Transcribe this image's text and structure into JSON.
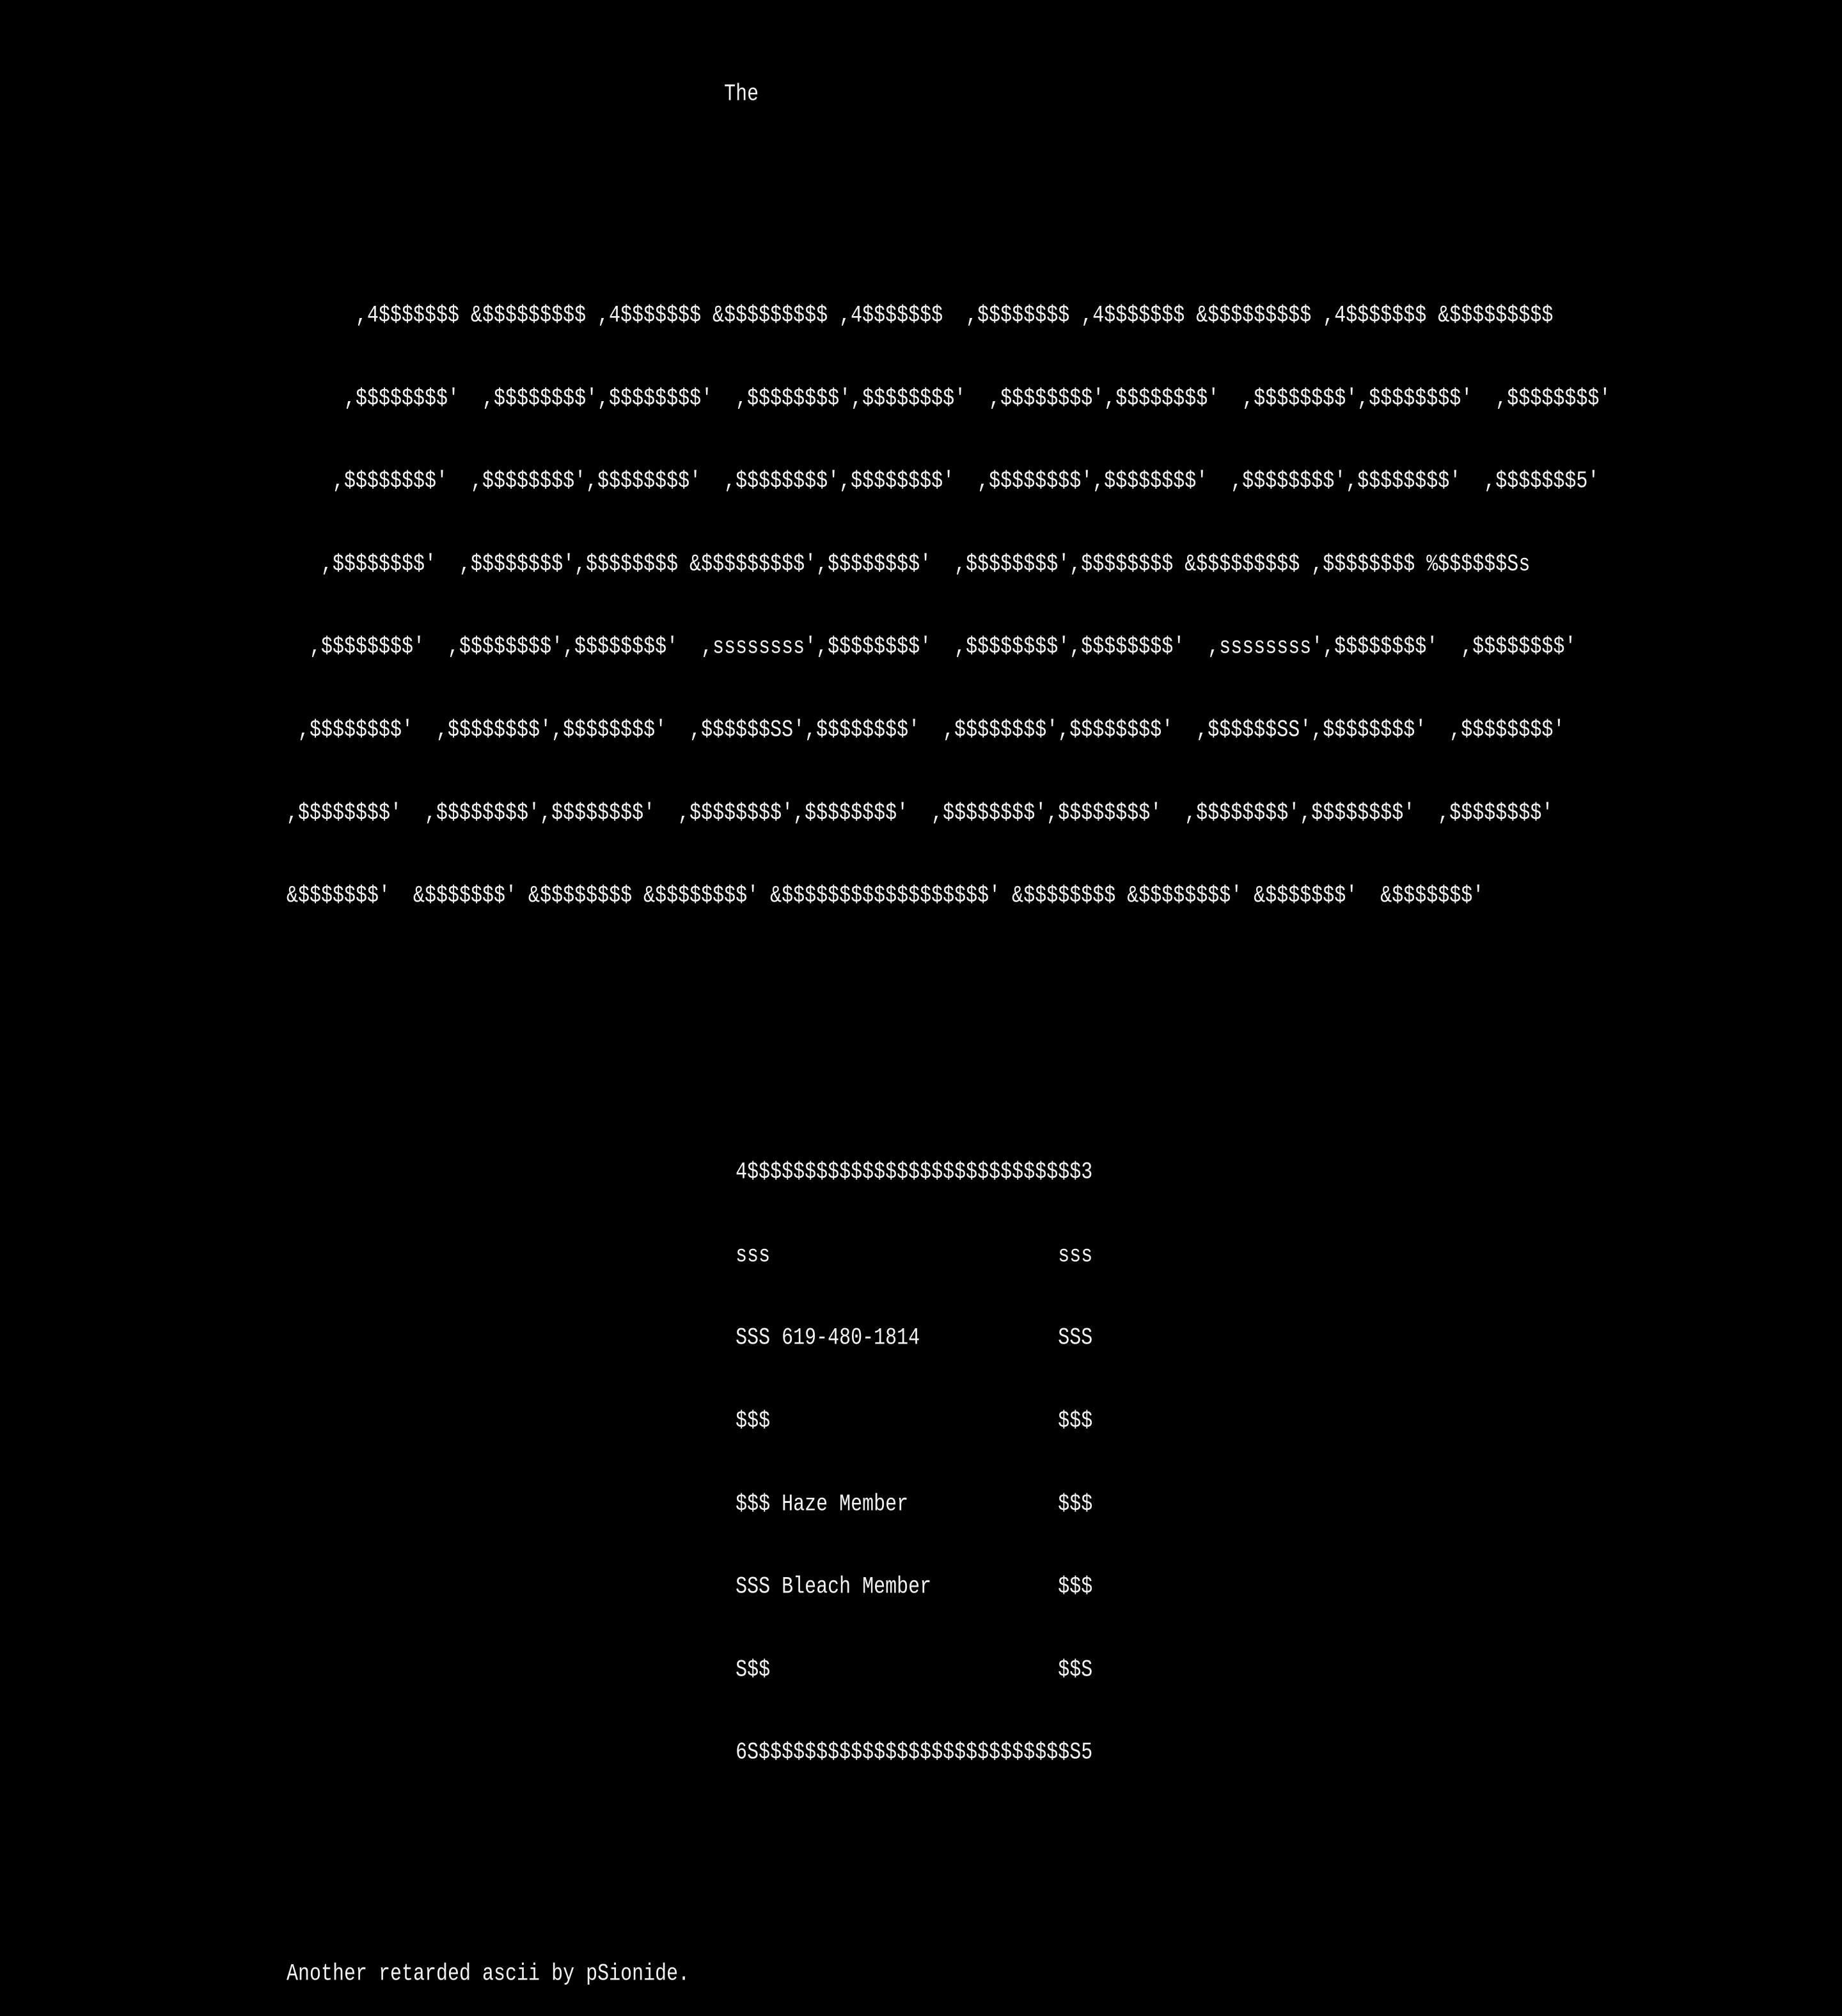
{
  "heading": "                                      The",
  "art_lines": [
    "      ,4$$$$$$$ &$$$$$$$$$ ,4$$$$$$$ &$$$$$$$$$ ,4$$$$$$$  ,$$$$$$$$ ,4$$$$$$$ &$$$$$$$$$ ,4$$$$$$$ &$$$$$$$$$",
    "     ,$$$$$$$$'  ,$$$$$$$$',$$$$$$$$'  ,$$$$$$$$',$$$$$$$$'  ,$$$$$$$$',$$$$$$$$'  ,$$$$$$$$',$$$$$$$$'  ,$$$$$$$$'",
    "    ,$$$$$$$$'  ,$$$$$$$$',$$$$$$$$'  ,$$$$$$$$',$$$$$$$$'  ,$$$$$$$$',$$$$$$$$'  ,$$$$$$$$',$$$$$$$$'  ,$$$$$$$5'",
    "   ,$$$$$$$$'  ,$$$$$$$$',$$$$$$$$ &$$$$$$$$$',$$$$$$$$'  ,$$$$$$$$',$$$$$$$$ &$$$$$$$$$ ,$$$$$$$$ %$$$$$$Ss",
    "  ,$$$$$$$$'  ,$$$$$$$$',$$$$$$$$'  ,ssssssss',$$$$$$$$'  ,$$$$$$$$',$$$$$$$$'  ,ssssssss',$$$$$$$$'  ,$$$$$$$$'",
    " ,$$$$$$$$'  ,$$$$$$$$',$$$$$$$$'  ,$$$$$$SS',$$$$$$$$'  ,$$$$$$$$',$$$$$$$$'  ,$$$$$$SS',$$$$$$$$'  ,$$$$$$$$'",
    ",$$$$$$$$'  ,$$$$$$$$',$$$$$$$$'  ,$$$$$$$$',$$$$$$$$'  ,$$$$$$$$',$$$$$$$$'  ,$$$$$$$$',$$$$$$$$'  ,$$$$$$$$'",
    "&$$$$$$$'  &$$$$$$$' &$$$$$$$$ &$$$$$$$$' &$$$$$$$$$$$$$$$$$$' &$$$$$$$$ &$$$$$$$$' &$$$$$$$'  &$$$$$$$'"
  ],
  "box_lines": [
    "                                       4$$$$$$$$$$$$$$$$$$$$$$$$$$$$$3",
    "                                       sss                         sss",
    "                                       SSS 619-480-1814            SSS",
    "                                       $$$                         $$$",
    "                                       $$$ Haze Member             $$$",
    "                                       SSS Bleach Member           $$$",
    "                                       S$$                         $$S",
    "                                       6S$$$$$$$$$$$$$$$$$$$$$$$$$$$S5"
  ],
  "footer": "Another retarded ascii by pSionide.",
  "colors": {
    "background": "#000000",
    "text": "#f2f2f2"
  }
}
